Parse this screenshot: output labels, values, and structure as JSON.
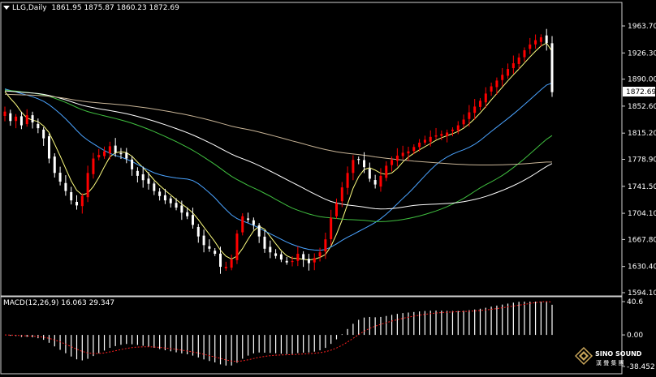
{
  "chart_header": {
    "symbol": "LLG,Daily",
    "ohlc": "1861.95 1875.87 1860.23 1872.69"
  },
  "macd_header": {
    "label": "MACD(12,26,9) 16.063 29.347"
  },
  "price_axis": {
    "ticks": [
      "1963.70",
      "1926.30",
      "1890.00",
      "1852.60",
      "1815.20",
      "1778.90",
      "1741.50",
      "1704.10",
      "1667.80",
      "1630.40",
      "1594.10"
    ],
    "current_price": "1872.69"
  },
  "macd_axis": {
    "ticks": [
      "40.6",
      "0.00",
      "-38.452"
    ]
  },
  "colors": {
    "background": "#000000",
    "bull_candle": "#ff0000",
    "bear_candle": "#ffffff",
    "ma_fast": "#ffff80",
    "ma_mid": "#4aa3ff",
    "ma_green": "#40c040",
    "ma_white": "#ffffff",
    "ma_slow": "#c8b496",
    "macd_hist": "#ffffff",
    "macd_signal": "#ff2020"
  },
  "watermark": {
    "brand": "SINO SOUND",
    "sub": "漢 聲 集 團",
    "icon": "diamond-logo-icon"
  },
  "chart_data": {
    "type": "candlestick",
    "price_range": [
      1594.1,
      1963.7
    ],
    "closes": [
      1845,
      1832,
      1838,
      1826,
      1840,
      1830,
      1822,
      1808,
      1780,
      1760,
      1748,
      1735,
      1722,
      1715,
      1728,
      1760,
      1780,
      1785,
      1790,
      1797,
      1788,
      1786,
      1780,
      1765,
      1756,
      1750,
      1745,
      1735,
      1728,
      1722,
      1718,
      1712,
      1705,
      1700,
      1688,
      1672,
      1660,
      1655,
      1648,
      1630,
      1630,
      1640,
      1676,
      1700,
      1695,
      1688,
      1672,
      1655,
      1650,
      1645,
      1640,
      1636,
      1638,
      1648,
      1640,
      1635,
      1642,
      1650,
      1668,
      1698,
      1718,
      1740,
      1760,
      1778,
      1778,
      1768,
      1752,
      1744,
      1756,
      1770,
      1778,
      1784,
      1788,
      1790,
      1796,
      1802,
      1806,
      1810,
      1812,
      1814,
      1816,
      1820,
      1826,
      1834,
      1844,
      1852,
      1860,
      1870,
      1880,
      1888,
      1896,
      1904,
      1912,
      1920,
      1930,
      1938,
      1944,
      1948,
      1940,
      1872
    ],
    "macd_values_range": [
      -38.452,
      40.6
    ]
  }
}
